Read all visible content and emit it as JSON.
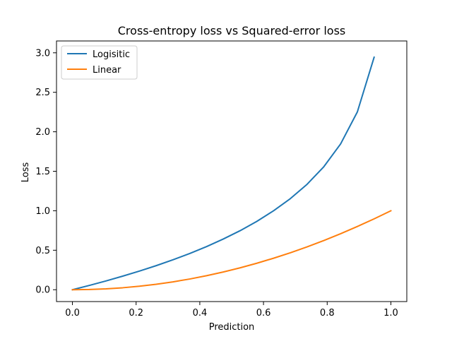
{
  "chart_data": {
    "type": "line",
    "title": "Cross-entropy loss vs Squared-error loss",
    "xlabel": "Prediction",
    "ylabel": "Loss",
    "xlim": [
      -0.05,
      1.05
    ],
    "ylim": [
      -0.15,
      3.15
    ],
    "xticks": [
      0.0,
      0.2,
      0.4,
      0.6,
      0.8,
      1.0
    ],
    "xtick_labels": [
      "0.0",
      "0.2",
      "0.4",
      "0.6",
      "0.8",
      "1.0"
    ],
    "yticks": [
      0.0,
      0.5,
      1.0,
      1.5,
      2.0,
      2.5,
      3.0
    ],
    "ytick_labels": [
      "0.0",
      "0.5",
      "1.0",
      "1.5",
      "2.0",
      "2.5",
      "3.0"
    ],
    "grid": false,
    "legend_position": "top-left",
    "series": [
      {
        "name": "Logisitic",
        "color": "#1f77b4",
        "x": [
          0.0,
          0.0526,
          0.1053,
          0.1579,
          0.2105,
          0.2632,
          0.3158,
          0.3684,
          0.4211,
          0.4737,
          0.5263,
          0.5789,
          0.6316,
          0.6842,
          0.7368,
          0.7895,
          0.8421,
          0.8947,
          0.9474
        ],
        "y": [
          0.0,
          0.054,
          0.111,
          0.172,
          0.236,
          0.305,
          0.379,
          0.459,
          0.546,
          0.642,
          0.747,
          0.865,
          1.0,
          1.153,
          1.335,
          1.558,
          1.846,
          2.251,
          2.944
        ]
      },
      {
        "name": "Linear",
        "color": "#ff7f0e",
        "x": [
          0.0,
          0.0526,
          0.1053,
          0.1579,
          0.2105,
          0.2632,
          0.3158,
          0.3684,
          0.4211,
          0.4737,
          0.5263,
          0.5789,
          0.6316,
          0.6842,
          0.7368,
          0.7895,
          0.8421,
          0.8947,
          0.9474,
          1.0
        ],
        "y": [
          0.0,
          0.0028,
          0.0111,
          0.0249,
          0.0443,
          0.0693,
          0.0997,
          0.1357,
          0.1773,
          0.2244,
          0.277,
          0.3352,
          0.3989,
          0.4681,
          0.5429,
          0.6233,
          0.7091,
          0.8006,
          0.8975,
          1.0
        ]
      }
    ]
  }
}
